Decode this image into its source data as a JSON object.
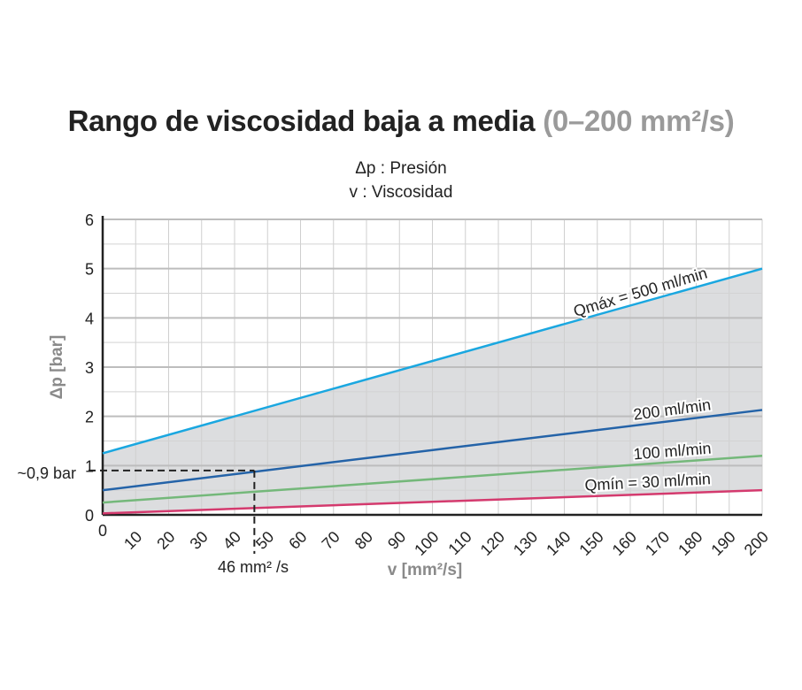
{
  "title": {
    "main": "Rango de viscosidad baja a media",
    "range": "(0–200 mm²/s)"
  },
  "legend": {
    "line1": "Δp : Presión",
    "line2": "v : Viscosidad"
  },
  "chart_data": {
    "type": "line",
    "title": "Rango de viscosidad baja a media (0–200 mm²/s)",
    "xlabel": "v [mm²/s]",
    "ylabel": "Δp [bar]",
    "xlim": [
      0,
      200
    ],
    "ylim": [
      0,
      6
    ],
    "xticks": [
      0,
      10,
      20,
      30,
      40,
      50,
      60,
      70,
      80,
      90,
      100,
      110,
      120,
      130,
      140,
      150,
      160,
      170,
      180,
      190,
      200
    ],
    "yticks": [
      0,
      1,
      2,
      3,
      4,
      5,
      6
    ],
    "grid": true,
    "series": [
      {
        "name": "Qmáx = 500 ml/min",
        "color": "#1aa7e0",
        "x": [
          0,
          200
        ],
        "y": [
          1.25,
          5.0
        ]
      },
      {
        "name": "200 ml/min",
        "color": "#2463a8",
        "x": [
          0,
          200
        ],
        "y": [
          0.5,
          2.13
        ]
      },
      {
        "name": "100 ml/min",
        "color": "#74b87a",
        "x": [
          0,
          200
        ],
        "y": [
          0.25,
          1.2
        ]
      },
      {
        "name": "Qmín = 30 ml/min",
        "color": "#d43a6e",
        "x": [
          0,
          200
        ],
        "y": [
          0.03,
          0.5
        ]
      }
    ],
    "shaded_region": {
      "between": [
        "Qmáx = 500 ml/min",
        "Qmín = 30 ml/min"
      ],
      "color": "#dcdddf"
    },
    "annotation": {
      "x": 46,
      "y": 0.9,
      "x_label": "46 mm² /s",
      "y_label": "~0,9 bar"
    }
  }
}
